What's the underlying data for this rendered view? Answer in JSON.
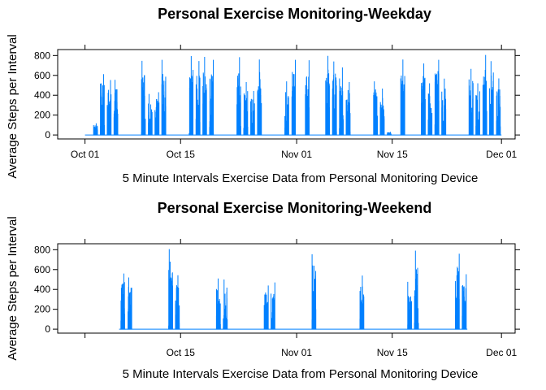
{
  "chart_data": [
    {
      "type": "line",
      "title": "Personal Exercise Monitoring-Weekday",
      "xlabel": "5 Minute Intervals Exercise Data from Personal Monitoring Device",
      "ylabel": "Average Steps per Interval",
      "xlim": [
        "2012-09-27",
        "2012-12-03"
      ],
      "ylim": [
        -40,
        860
      ],
      "x_tick_labels": [
        "Oct 01",
        "Oct 15",
        "Nov 01",
        "Nov 15",
        "Dec 01"
      ],
      "x_ticks": [
        "2012-10-01",
        "2012-10-15",
        "2012-11-01",
        "2012-11-15",
        "2012-12-01"
      ],
      "y_ticks": [
        0,
        200,
        400,
        600,
        800
      ],
      "y_tick_labels": [
        "0",
        "200",
        "400",
        "600",
        "800"
      ],
      "line_color": "#0080ff",
      "grid": false,
      "series": [
        {
          "x": [
            "2012-10-01",
            "2012-10-02",
            "2012-10-03",
            "2012-10-04",
            "2012-10-05",
            "2012-10-08",
            "2012-10-09",
            "2012-10-10",
            "2012-10-11",
            "2012-10-12",
            "2012-10-15",
            "2012-10-16",
            "2012-10-17",
            "2012-10-18",
            "2012-10-19",
            "2012-10-22",
            "2012-10-23",
            "2012-10-24",
            "2012-10-25",
            "2012-10-26",
            "2012-10-29",
            "2012-10-30",
            "2012-10-31",
            "2012-11-01",
            "2012-11-02",
            "2012-11-05",
            "2012-11-06",
            "2012-11-07",
            "2012-11-08",
            "2012-11-09",
            "2012-11-12",
            "2012-11-13",
            "2012-11-14",
            "2012-11-15",
            "2012-11-16",
            "2012-11-19",
            "2012-11-20",
            "2012-11-21",
            "2012-11-22",
            "2012-11-23",
            "2012-11-26",
            "2012-11-27",
            "2012-11-28",
            "2012-11-29",
            "2012-11-30"
          ],
          "peak_steps": [
            0,
            117,
            613,
            553,
            555,
            0,
            746,
            413,
            430,
            757,
            0,
            795,
            744,
            786,
            757,
            0,
            783,
            533,
            443,
            760,
            0,
            540,
            757,
            0,
            753,
            797,
            740,
            680,
            533,
            0,
            540,
            467,
            32,
            0,
            760,
            720,
            520,
            757,
            567,
            0,
            666,
            520,
            806,
            743,
            570
          ]
        }
      ]
    },
    {
      "type": "line",
      "title": "Personal Exercise Monitoring-Weekend",
      "xlabel": "5 Minute Intervals Exercise Data from Personal Monitoring Device",
      "ylabel": "Average Steps per Interval",
      "xlim": [
        "2012-09-27",
        "2012-12-03"
      ],
      "ylim": [
        -40,
        860
      ],
      "x_tick_labels": [
        "",
        "Oct 15",
        "Nov 01",
        "Nov 15",
        "Dec 01"
      ],
      "x_ticks": [
        "2012-10-01",
        "2012-10-15",
        "2012-11-01",
        "2012-11-15",
        "2012-12-01"
      ],
      "y_ticks": [
        0,
        200,
        400,
        600,
        800
      ],
      "y_tick_labels": [
        "0",
        "200",
        "400",
        "600",
        "800"
      ],
      "line_color": "#0080ff",
      "grid": false,
      "series": [
        {
          "x": [
            "2012-10-06",
            "2012-10-07",
            "2012-10-13",
            "2012-10-14",
            "2012-10-20",
            "2012-10-21",
            "2012-10-27",
            "2012-10-28",
            "2012-11-03",
            "2012-11-04",
            "2012-11-10",
            "2012-11-11",
            "2012-11-17",
            "2012-11-18",
            "2012-11-24",
            "2012-11-25"
          ],
          "peak_steps": [
            560,
            520,
            806,
            543,
            510,
            500,
            440,
            470,
            755,
            0,
            540,
            0,
            476,
            790,
            760,
            553
          ]
        }
      ]
    }
  ]
}
